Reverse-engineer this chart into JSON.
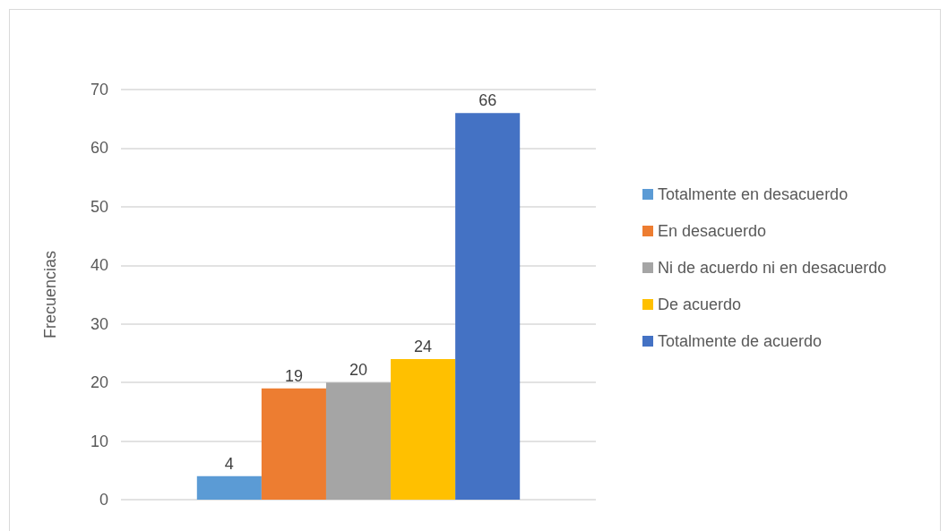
{
  "chart_data": {
    "type": "bar",
    "ylabel": "Frecuencias",
    "categories": [
      null
    ],
    "series": [
      {
        "name": "Totalmente en desacuerdo",
        "color": "#5b9bd5",
        "values": [
          4
        ]
      },
      {
        "name": "En desacuerdo",
        "color": "#ed7d31",
        "values": [
          19
        ]
      },
      {
        "name": "Ni de acuerdo ni en desacuerdo",
        "color": "#a5a5a5",
        "values": [
          20
        ]
      },
      {
        "name": "De acuerdo",
        "color": "#ffc000",
        "values": [
          24
        ]
      },
      {
        "name": "Totalmente de acuerdo",
        "color": "#4472c4",
        "values": [
          66
        ]
      }
    ],
    "ylim": [
      0,
      70
    ],
    "yticks": [
      0,
      10,
      20,
      30,
      40,
      50,
      60,
      70
    ],
    "grid": "y",
    "legend": "right",
    "data_labels": true
  }
}
